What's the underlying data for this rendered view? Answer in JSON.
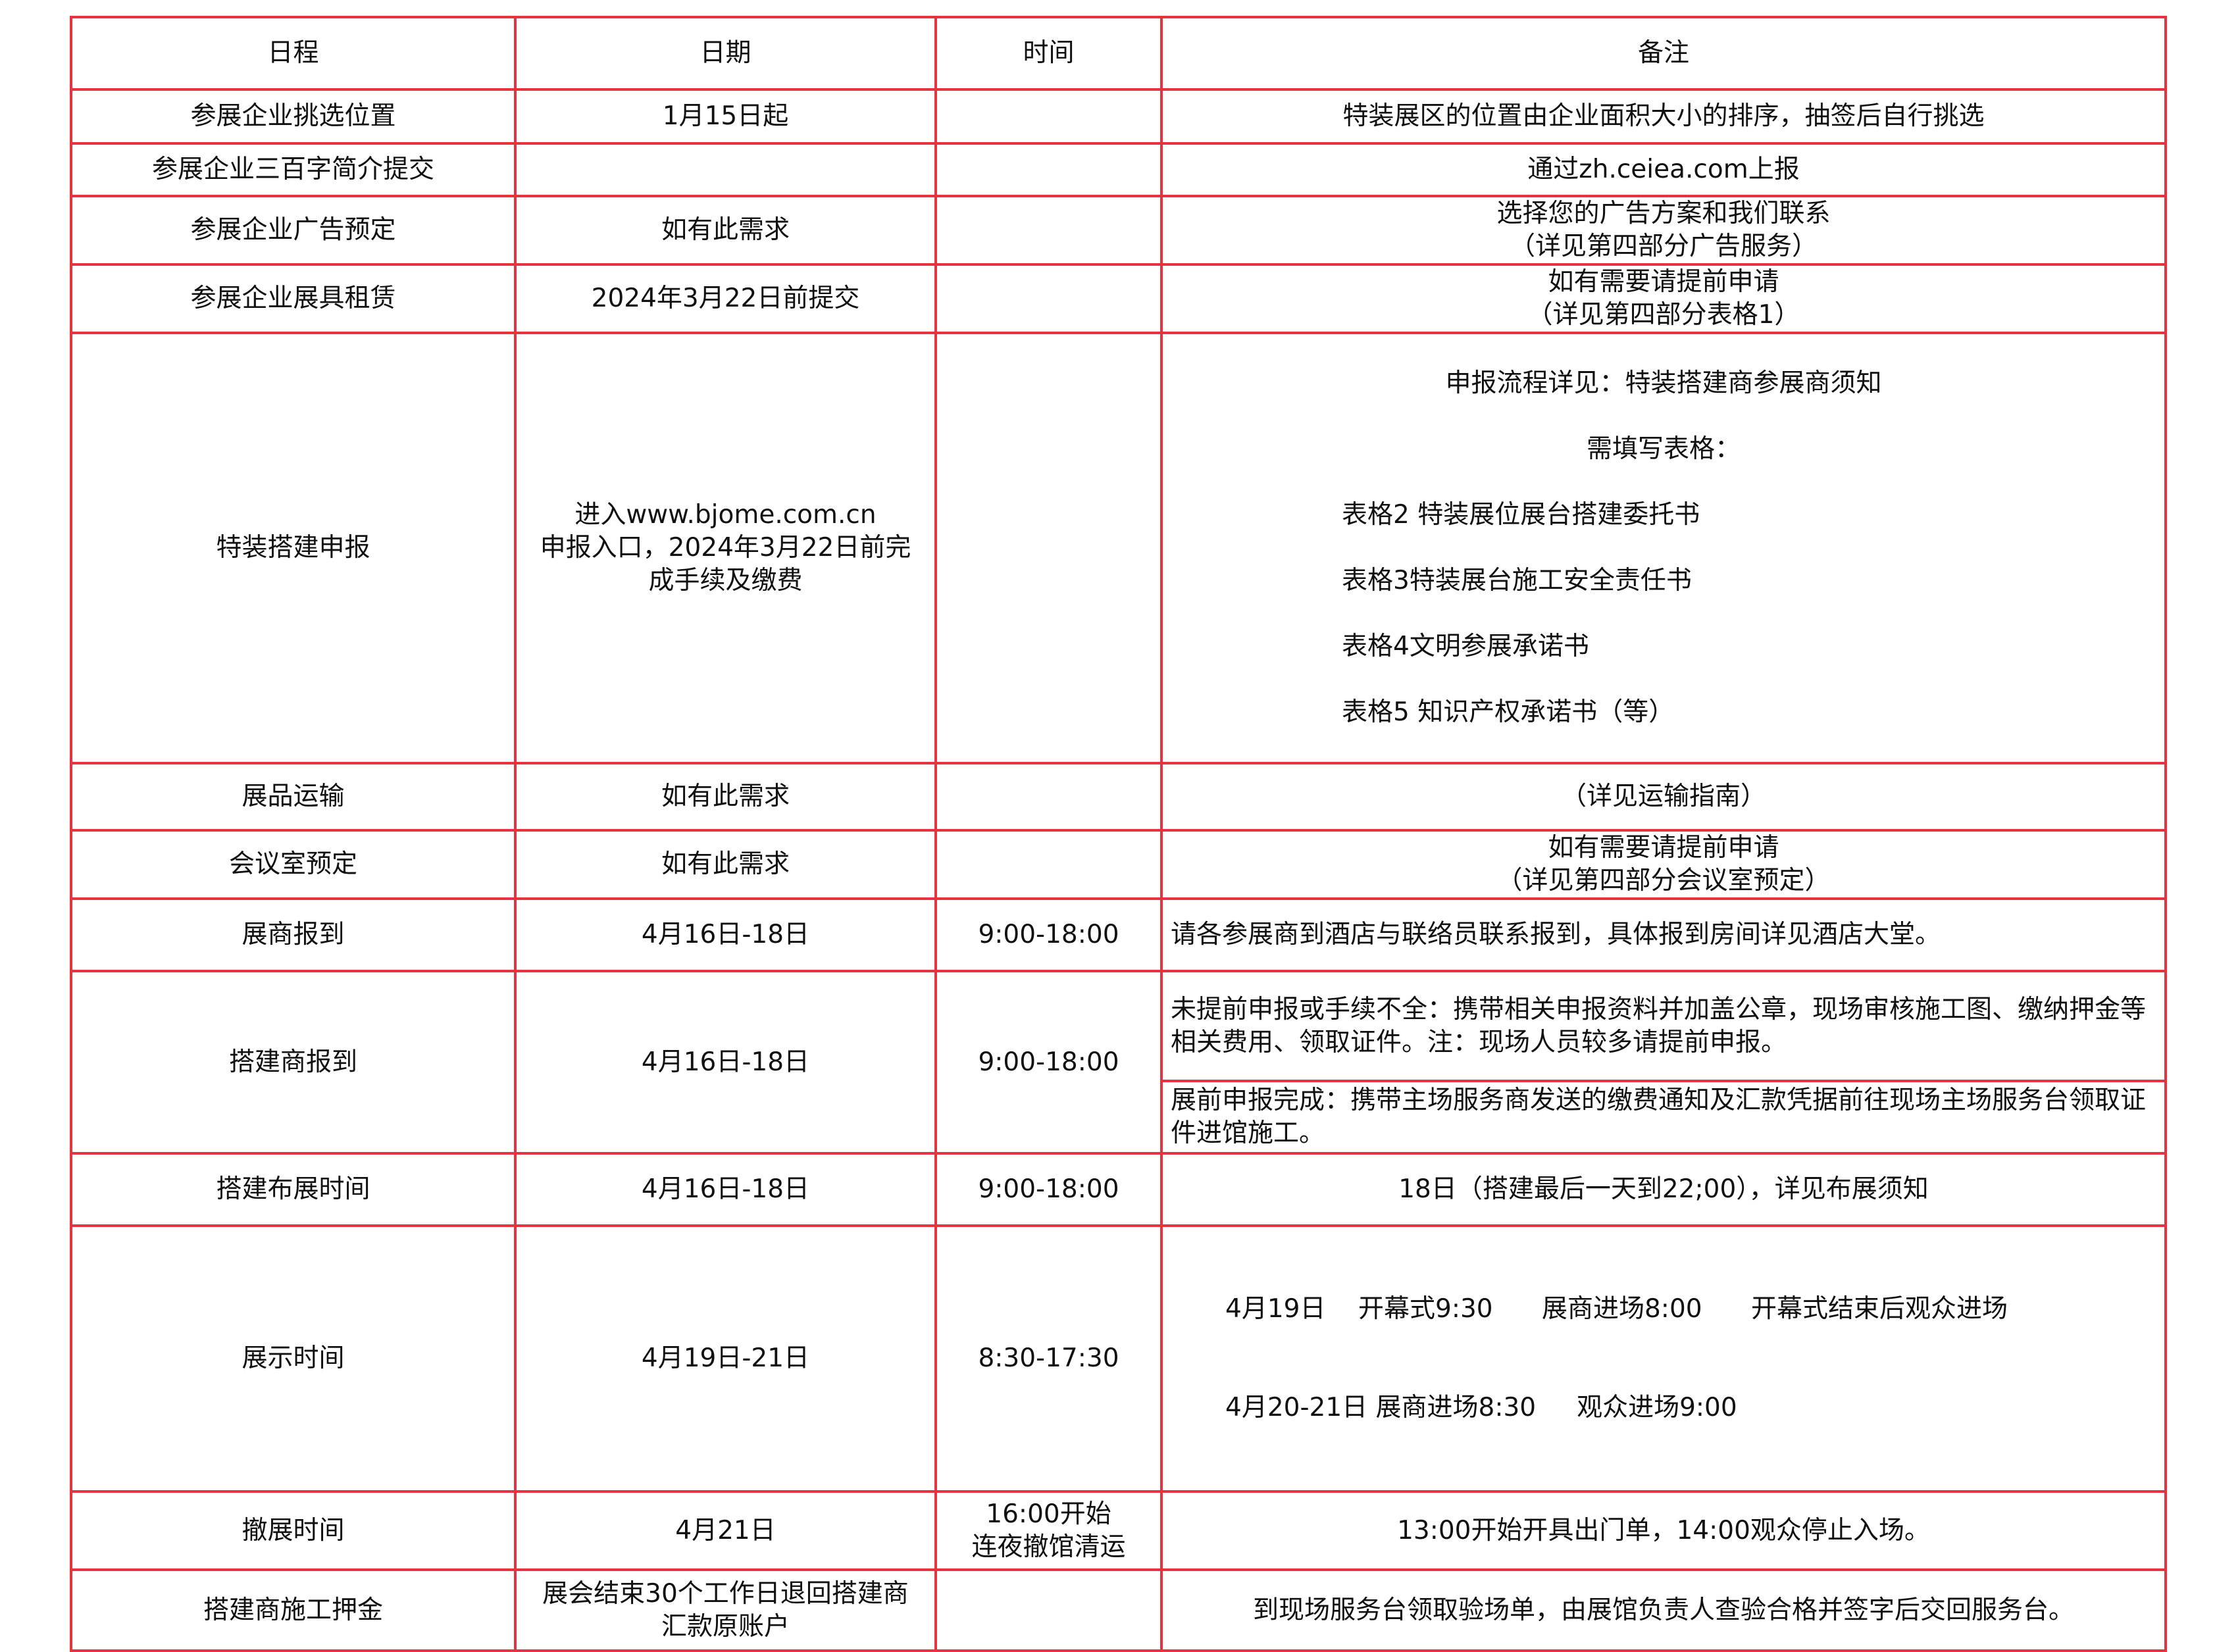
{
  "header": {
    "schedule": "日程",
    "date": "日期",
    "time": "时间",
    "note": "备注"
  },
  "rows": [
    {
      "schedule": "参展企业挑选位置",
      "date": "1月15日起",
      "time": "",
      "note": "特装展区的位置由企业面积大小的排序，抽签后自行挑选"
    },
    {
      "schedule": "参展企业三百字简介提交",
      "date": "",
      "time": "",
      "note": "通过zh.ceiea.com上报"
    },
    {
      "schedule": "参展企业广告预定",
      "date": "如有此需求",
      "time": "",
      "note": "选择您的广告方案和我们联系\n（详见第四部分广告服务）"
    },
    {
      "schedule": "参展企业展具租赁",
      "date": "2024年3月22日前提交",
      "time": "",
      "note": "如有需要请提前申请\n（详见第四部分表格1）"
    },
    {
      "schedule": "特装搭建申报",
      "date": "进入www.bjome.com.cn\n申报入口，2024年3月22日前完\n成手续及缴费",
      "time": "",
      "note_lines": [
        "申报流程详见：特装搭建商参展商须知",
        "需填写表格：",
        "表格2 特装展位展台搭建委托书",
        "表格3特装展台施工安全责任书",
        "表格4文明参展承诺书",
        "表格5  知识产权承诺书（等）"
      ]
    },
    {
      "schedule": "展品运输",
      "date": "如有此需求",
      "time": "",
      "note": "（详见运输指南）"
    },
    {
      "schedule": "会议室预定",
      "date": "如有此需求",
      "time": "",
      "note": "如有需要请提前申请\n（详见第四部分会议室预定）"
    },
    {
      "schedule": "展商报到",
      "date": "4月16日-18日",
      "time": "9:00-18:00",
      "note": "请各参展商到酒店与联络员联系报到，具体报到房间详见酒店大堂。"
    },
    {
      "schedule": "搭建商报到",
      "date": "4月16日-18日",
      "time": "9:00-18:00",
      "note": "未提前申报或手续不全：携带相关申报资料并加盖公章，现场审核施工图、缴纳押金等相关费用、领取证件。注：现场人员较多请提前申报。",
      "note2": "展前申报完成：携带主场服务商发送的缴费通知及汇款凭据前往现场主场服务台领取证件进馆施工。"
    },
    {
      "schedule": "搭建布展时间",
      "date": "4月16日-18日",
      "time": "9:00-18:00",
      "note": "18日（搭建最后一天到22;00），详见布展须知"
    },
    {
      "schedule": "展示时间",
      "date": "4月19日-21日",
      "time": "8:30-17:30",
      "note_lines": [
        "4月19日    开幕式9:30      展商进场8:00      开幕式结束后观众进场",
        "4月20-21日 展商进场8:30     观众进场9:00"
      ]
    },
    {
      "schedule": "撤展时间",
      "date": "4月21日",
      "time": "16:00开始\n连夜撤馆清运",
      "note": "13:00开始开具出门单，14:00观众停止入场。"
    },
    {
      "schedule": "搭建商施工押金",
      "date": "展会结束30个工作日退回搭建商\n汇款原账户",
      "time": "",
      "note": "到现场服务台领取验场单，由展馆负责人查验合格并签字后交回服务台。"
    }
  ]
}
